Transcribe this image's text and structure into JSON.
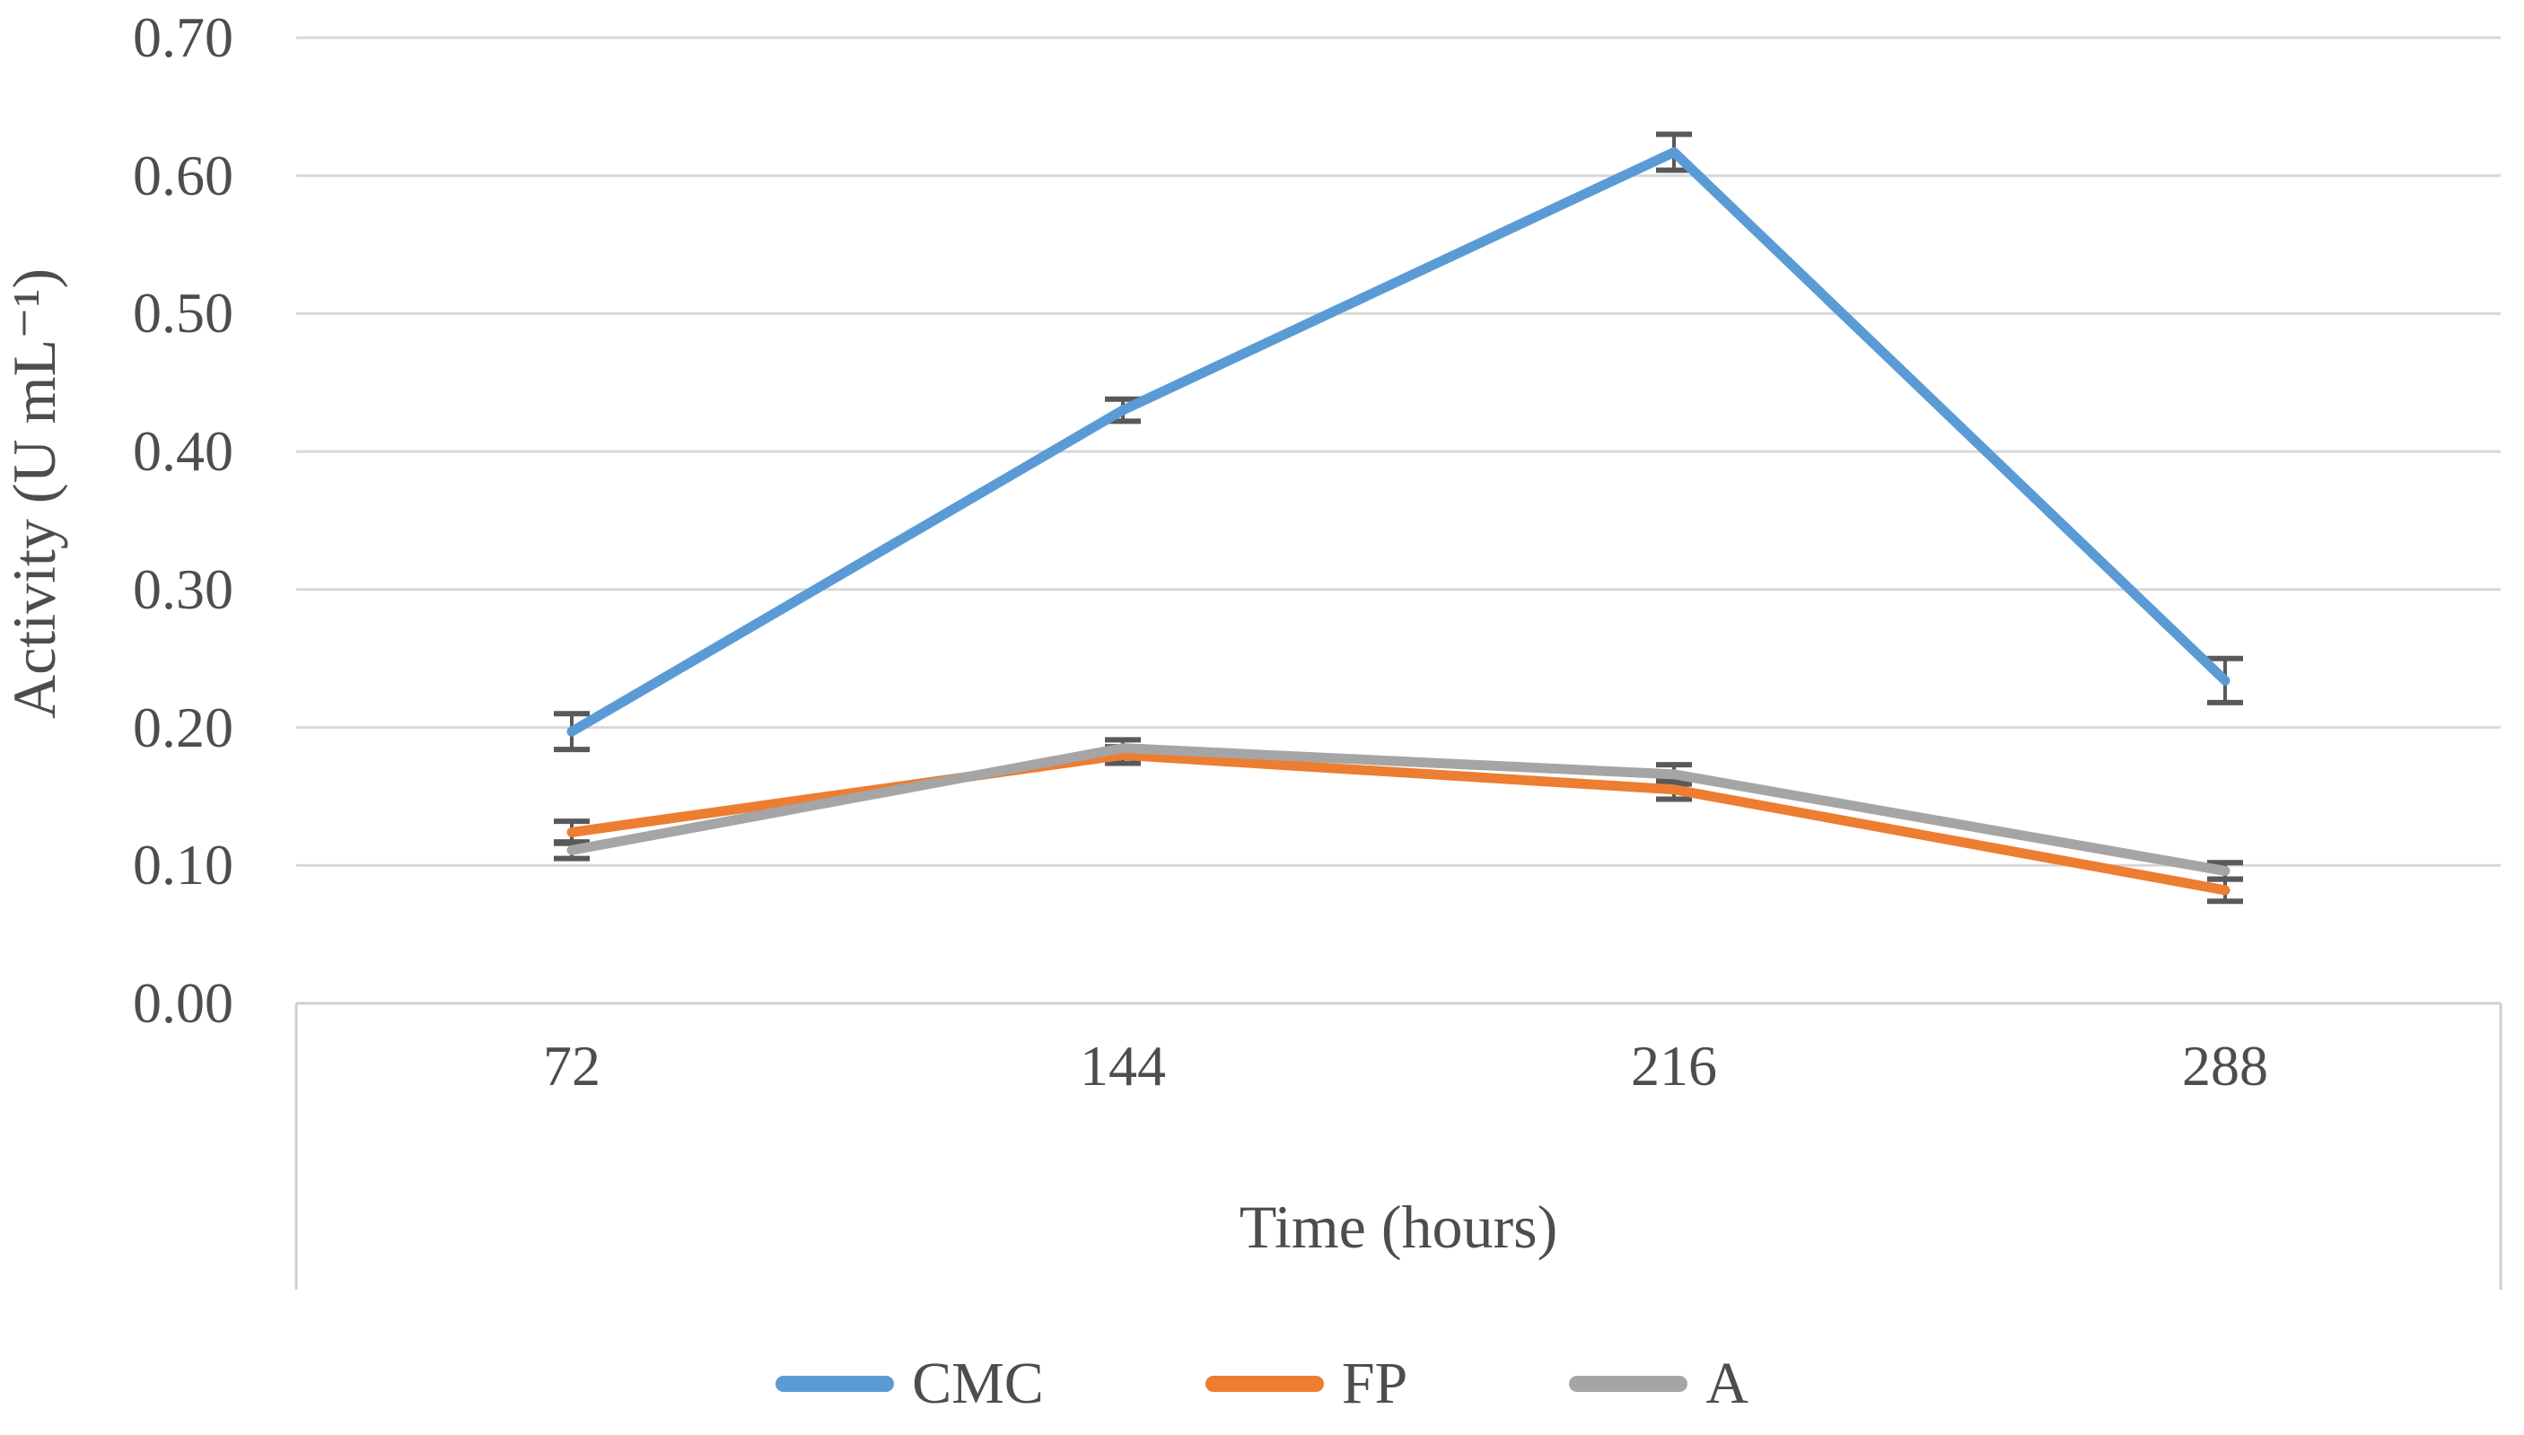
{
  "figure": {
    "y_axis_title": "Activity (U mL⁻¹)",
    "x_axis_title": "Time (hours)"
  },
  "chart_data": {
    "type": "line",
    "title": "",
    "xlabel": "Time (hours)",
    "ylabel": "Activity (U mL⁻¹)",
    "categories": [
      "72",
      "144",
      "216",
      "288"
    ],
    "series": [
      {
        "name": "CMC",
        "color": "#5B9BD5",
        "values": [
          0.197,
          0.43,
          0.617,
          0.234
        ],
        "errors": [
          0.013,
          0.008,
          0.013,
          0.016
        ]
      },
      {
        "name": "FP",
        "color": "#ED7D31",
        "values": [
          0.124,
          0.18,
          0.155,
          0.082
        ],
        "errors": [
          0.008,
          0.006,
          0.007,
          0.008
        ]
      },
      {
        "name": "A",
        "color": "#A5A5A5",
        "values": [
          0.111,
          0.185,
          0.166,
          0.096
        ],
        "errors": [
          0.006,
          0.006,
          0.007,
          0.006
        ]
      }
    ],
    "ylim": [
      0.0,
      0.7
    ],
    "y_tick_step": 0.1,
    "y_tick_labels": [
      "0.00",
      "0.10",
      "0.20",
      "0.30",
      "0.40",
      "0.50",
      "0.60",
      "0.70"
    ],
    "grid": true,
    "legend_position": "bottom",
    "error_bar_color": "#595959",
    "gridline_color": "#D8D8D8",
    "axis_box_color": "#CFCFCF",
    "text_color": "#4d4d4d"
  }
}
